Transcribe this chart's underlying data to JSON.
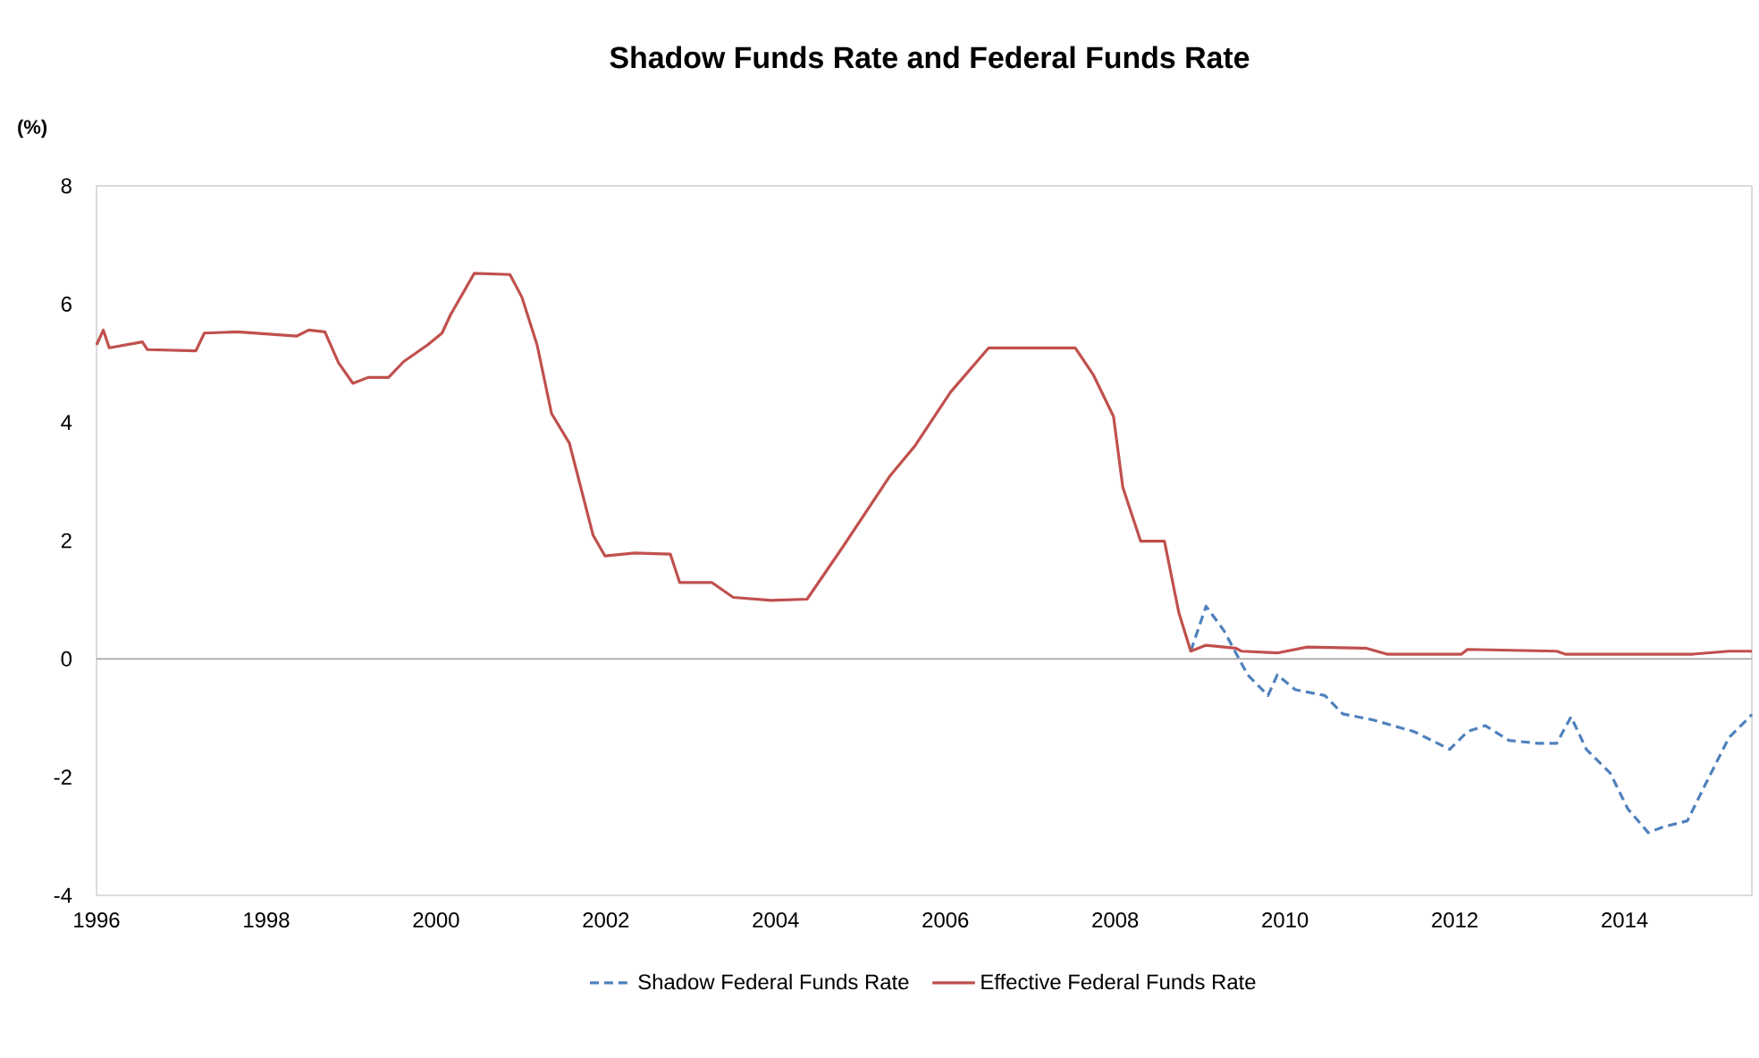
{
  "chart_data": {
    "type": "line",
    "title": "Shadow Funds Rate and Federal Funds Rate",
    "ylabel": "(%)",
    "xlim": [
      1996,
      2015.5
    ],
    "xticks": [
      1996,
      1998,
      2000,
      2002,
      2004,
      2006,
      2008,
      2010,
      2012,
      2014
    ],
    "ylim": [
      -4,
      8
    ],
    "yticks": [
      -4,
      -2,
      0,
      2,
      4,
      6,
      8
    ],
    "grid": false,
    "legend": "bottom",
    "ref_lines": [
      {
        "axis": "y",
        "value": 0,
        "color": "#a6a6a6"
      }
    ],
    "series": [
      {
        "name": "Shadow Federal Funds Rate",
        "color": "#4f81bd",
        "line_style": "dashed",
        "x": [
          2008.89,
          2009.07,
          2009.28,
          2009.56,
          2009.8,
          2009.91,
          2010.12,
          2010.47,
          2010.68,
          2011.03,
          2011.52,
          2011.94,
          2012.15,
          2012.36,
          2012.64,
          2012.99,
          2013.2,
          2013.37,
          2013.55,
          2013.83,
          2014.04,
          2014.28,
          2014.46,
          2014.74,
          2014.95,
          2015.23,
          2015.44,
          2015.5
        ],
        "values": [
          0.13,
          0.89,
          0.48,
          -0.27,
          -0.62,
          -0.27,
          -0.52,
          -0.62,
          -0.93,
          -1.03,
          -1.23,
          -1.53,
          -1.23,
          -1.13,
          -1.38,
          -1.43,
          -1.43,
          -0.98,
          -1.53,
          -1.93,
          -2.54,
          -2.94,
          -2.84,
          -2.74,
          -2.13,
          -1.33,
          -1.03,
          -0.94
        ]
      },
      {
        "name": "Effective Federal Funds Rate",
        "color": "#c0504d",
        "line_style": "solid",
        "x": [
          1996.0,
          1996.08,
          1996.15,
          1996.54,
          1996.6,
          1997.17,
          1997.27,
          1997.66,
          1998.36,
          1998.5,
          1998.69,
          1998.85,
          1999.02,
          1999.2,
          1999.44,
          1999.62,
          1999.9,
          2000.07,
          2000.17,
          2000.45,
          2000.87,
          2001.01,
          2001.19,
          2001.36,
          2001.57,
          2001.85,
          2001.99,
          2002.34,
          2002.76,
          2002.87,
          2003.25,
          2003.5,
          2003.95,
          2004.37,
          2004.79,
          2005.35,
          2005.64,
          2006.06,
          2006.51,
          2007.53,
          2007.74,
          2007.98,
          2008.09,
          2008.3,
          2008.58,
          2008.75,
          2008.89,
          2009.07,
          2009.42,
          2009.49,
          2009.91,
          2010.26,
          2010.96,
          2011.2,
          2012.08,
          2012.15,
          2013.2,
          2013.3,
          2014.81,
          2015.23,
          2015.5
        ],
        "values": [
          5.31,
          5.56,
          5.26,
          5.36,
          5.23,
          5.21,
          5.51,
          5.53,
          5.46,
          5.56,
          5.53,
          5.01,
          4.66,
          4.76,
          4.76,
          5.03,
          5.31,
          5.51,
          5.82,
          6.52,
          6.5,
          6.12,
          5.31,
          4.15,
          3.65,
          2.09,
          1.74,
          1.79,
          1.77,
          1.29,
          1.29,
          1.04,
          0.99,
          1.01,
          1.89,
          3.1,
          3.6,
          4.51,
          5.26,
          5.26,
          4.81,
          4.1,
          2.9,
          1.99,
          1.99,
          0.78,
          0.13,
          0.23,
          0.18,
          0.13,
          0.1,
          0.2,
          0.18,
          0.08,
          0.08,
          0.16,
          0.13,
          0.08,
          0.08,
          0.13,
          0.13
        ]
      }
    ]
  }
}
